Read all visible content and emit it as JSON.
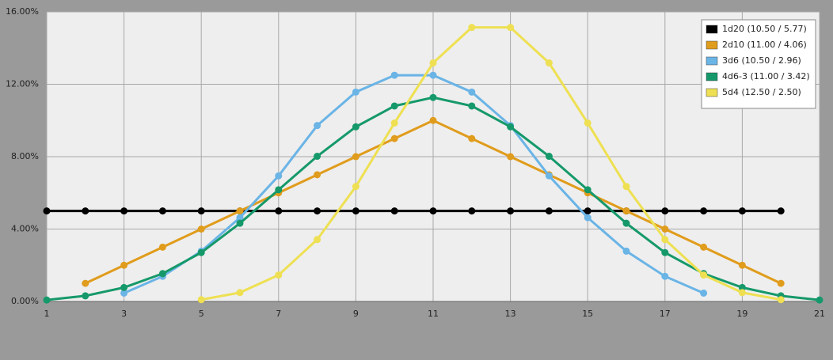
{
  "chart_data": {
    "type": "line",
    "xlim": [
      1,
      21
    ],
    "xticks": [
      1,
      3,
      5,
      7,
      9,
      11,
      13,
      15,
      17,
      19,
      21
    ],
    "ylim": [
      0,
      16
    ],
    "yticks": [
      {
        "value": 0,
        "label": "0.00%"
      },
      {
        "value": 4,
        "label": "4.00%"
      },
      {
        "value": 8,
        "label": "8.00%"
      },
      {
        "value": 12,
        "label": "12.00%"
      },
      {
        "value": 16,
        "label": "16.00%"
      }
    ],
    "grid": true,
    "legend": "upper right",
    "series": [
      {
        "name": "1d20 (10.50 / 5.77)",
        "color": "#000000",
        "x": [
          1,
          2,
          3,
          4,
          5,
          6,
          7,
          8,
          9,
          10,
          11,
          12,
          13,
          14,
          15,
          16,
          17,
          18,
          19,
          20
        ],
        "values": [
          5,
          5,
          5,
          5,
          5,
          5,
          5,
          5,
          5,
          5,
          5,
          5,
          5,
          5,
          5,
          5,
          5,
          5,
          5,
          5
        ]
      },
      {
        "name": "2d10 (11.00 / 4.06)",
        "color": "#e09c1c",
        "x": [
          2,
          3,
          4,
          5,
          6,
          7,
          8,
          9,
          10,
          11,
          12,
          13,
          14,
          15,
          16,
          17,
          18,
          19,
          20
        ],
        "values": [
          1,
          2,
          3,
          4,
          5,
          6,
          7,
          8,
          9,
          10,
          9,
          8,
          7,
          6,
          5,
          4,
          3,
          2,
          1
        ]
      },
      {
        "name": "3d6 (10.50 / 2.96)",
        "color": "#6ab4e6",
        "x": [
          3,
          4,
          5,
          6,
          7,
          8,
          9,
          10,
          11,
          12,
          13,
          14,
          15,
          16,
          17,
          18
        ],
        "values": [
          0.46,
          1.39,
          2.78,
          4.63,
          6.94,
          9.72,
          11.57,
          12.5,
          12.5,
          11.57,
          9.72,
          6.94,
          4.63,
          2.78,
          1.39,
          0.46
        ]
      },
      {
        "name": "4d6-3 (11.00 / 3.42)",
        "color": "#16996a",
        "x": [
          1,
          2,
          3,
          4,
          5,
          6,
          7,
          8,
          9,
          10,
          11,
          12,
          13,
          14,
          15,
          16,
          17,
          18,
          19,
          20,
          21
        ],
        "values": [
          0.08,
          0.31,
          0.77,
          1.54,
          2.7,
          4.32,
          6.17,
          8.02,
          9.65,
          10.8,
          11.27,
          10.8,
          9.65,
          8.02,
          6.17,
          4.32,
          2.7,
          1.54,
          0.77,
          0.31,
          0.08
        ]
      },
      {
        "name": "5d4 (12.50 / 2.50)",
        "color": "#eee052",
        "x": [
          5,
          6,
          7,
          8,
          9,
          10,
          11,
          12,
          13,
          14,
          15,
          16,
          17,
          18,
          19,
          20
        ],
        "values": [
          0.1,
          0.49,
          1.46,
          3.42,
          6.35,
          9.86,
          13.18,
          15.14,
          15.14,
          13.18,
          9.86,
          6.35,
          3.42,
          1.46,
          0.49,
          0.1
        ]
      }
    ]
  }
}
